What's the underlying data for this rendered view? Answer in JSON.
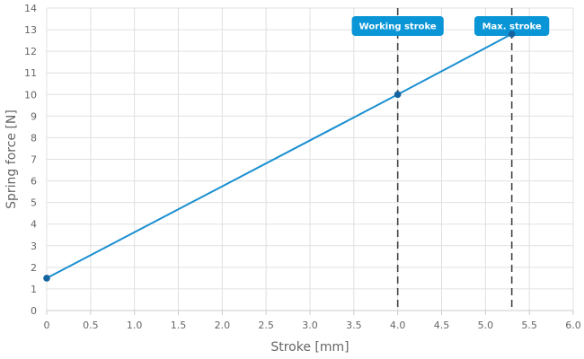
{
  "chart_data": {
    "type": "line",
    "title": "",
    "xlabel": "Stroke [mm]",
    "ylabel": "Spring force [N]",
    "xlim": [
      0,
      6
    ],
    "ylim": [
      0,
      14
    ],
    "x_ticks": [
      "0",
      "0.5",
      "1.0",
      "1.5",
      "2.0",
      "2.5",
      "3.0",
      "3.5",
      "4.0",
      "4.5",
      "5.0",
      "5.5",
      "6.0"
    ],
    "y_ticks": [
      "0",
      "1",
      "2",
      "3",
      "4",
      "5",
      "6",
      "7",
      "8",
      "9",
      "10",
      "11",
      "12",
      "13",
      "14"
    ],
    "grid": true,
    "series": [
      {
        "x": [
          0,
          4.0,
          5.3
        ],
        "y": [
          1.5,
          10,
          12.8
        ],
        "color": "#1a8fd1"
      }
    ],
    "reference_lines": [
      {
        "x": 4.0,
        "label": "Working stroke"
      },
      {
        "x": 5.3,
        "label": "Max. stroke"
      }
    ],
    "colors": {
      "line": "#1a8fd1",
      "marker": "#1565a0",
      "badge": "#0a96d6",
      "grid": "#e0e0e0",
      "text": "#666666",
      "dashed": "#444444"
    }
  }
}
